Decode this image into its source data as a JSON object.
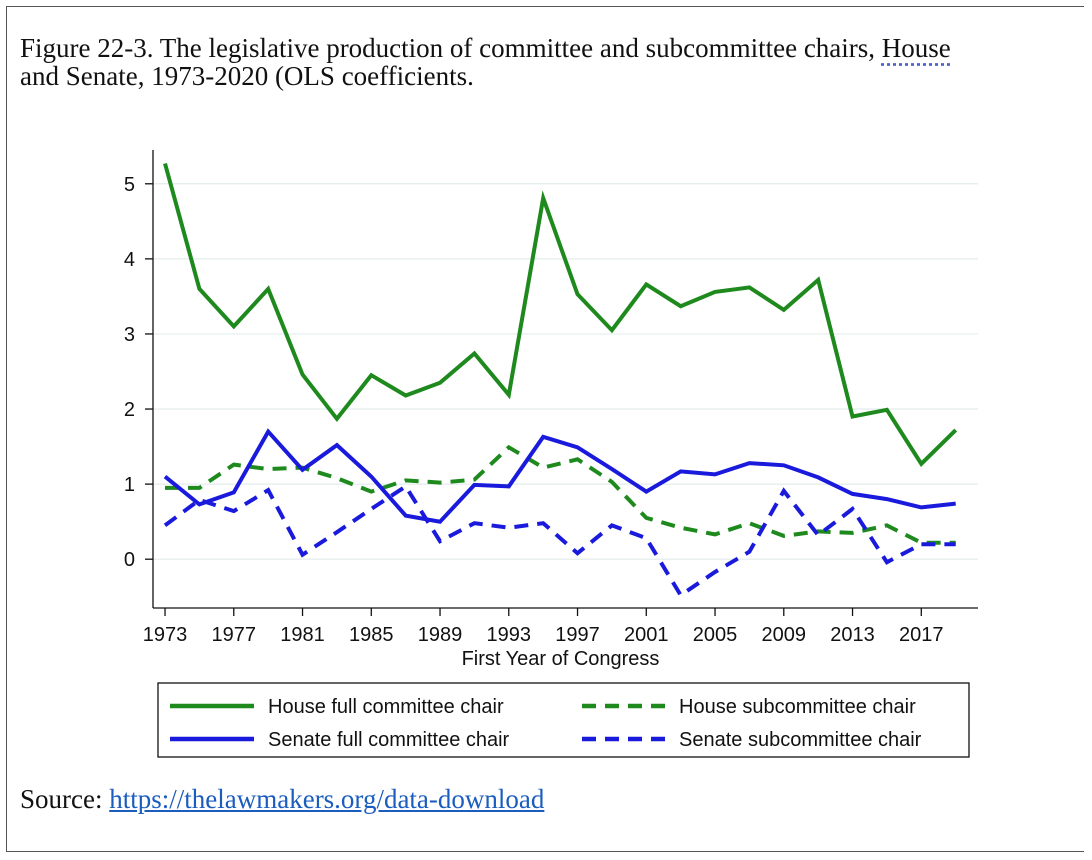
{
  "caption": {
    "line1_prefix": "Figure 22-3. The legislative production of committee and subcommittee chairs, ",
    "line1_underlined": "House",
    "line2": "and Senate, 1973-2020 (OLS coefficients."
  },
  "source": {
    "label": "Source:",
    "link_text": "https://thelawmakers.org/data-download"
  },
  "chart_data": {
    "type": "line",
    "xlabel": "First Year of Congress",
    "ylabel": "",
    "xlim": [
      1972.3,
      2020.3
    ],
    "ylim": [
      -0.65,
      5.45
    ],
    "xticks": [
      1973,
      1977,
      1981,
      1985,
      1989,
      1993,
      1997,
      2001,
      2005,
      2009,
      2013,
      2017
    ],
    "yticks": [
      0,
      1,
      2,
      3,
      4,
      5
    ],
    "grid": "horizontal",
    "legend_position": "bottom",
    "x": [
      1973,
      1975,
      1977,
      1979,
      1981,
      1983,
      1985,
      1987,
      1989,
      1991,
      1993,
      1995,
      1997,
      1999,
      2001,
      2003,
      2005,
      2007,
      2009,
      2011,
      2013,
      2015,
      2017,
      2019
    ],
    "series": [
      {
        "name": "House full committee chair",
        "color": "#1e8a1e",
        "style": "solid",
        "values": [
          5.27,
          3.6,
          3.1,
          3.6,
          2.46,
          1.87,
          2.45,
          2.18,
          2.35,
          2.74,
          2.19,
          4.81,
          3.53,
          3.05,
          3.66,
          3.37,
          3.56,
          3.62,
          3.32,
          3.72,
          1.9,
          1.99,
          1.27,
          1.72
        ]
      },
      {
        "name": "House subcommittee chair",
        "color": "#1e8a1e",
        "style": "dashed",
        "values": [
          0.95,
          0.95,
          1.26,
          1.2,
          1.22,
          1.08,
          0.9,
          1.05,
          1.02,
          1.06,
          1.49,
          1.22,
          1.33,
          1.03,
          0.55,
          0.42,
          0.33,
          0.48,
          0.31,
          0.37,
          0.35,
          0.45,
          0.22,
          0.22
        ]
      },
      {
        "name": "Senate full committee chair",
        "color": "#1a1add",
        "style": "solid",
        "values": [
          1.1,
          0.73,
          0.89,
          1.7,
          1.19,
          1.52,
          1.1,
          0.58,
          0.5,
          0.99,
          0.97,
          1.63,
          1.49,
          1.2,
          0.9,
          1.17,
          1.13,
          1.28,
          1.25,
          1.09,
          0.87,
          0.8,
          0.69,
          0.74
        ]
      },
      {
        "name": "Senate subcommittee chair",
        "color": "#1a1add",
        "style": "dashed",
        "values": [
          0.45,
          0.79,
          0.64,
          0.92,
          0.06,
          0.36,
          0.67,
          0.97,
          0.24,
          0.48,
          0.42,
          0.48,
          0.08,
          0.45,
          0.28,
          -0.48,
          -0.17,
          0.1,
          0.91,
          0.32,
          0.67,
          -0.04,
          0.2,
          0.2
        ]
      }
    ]
  }
}
